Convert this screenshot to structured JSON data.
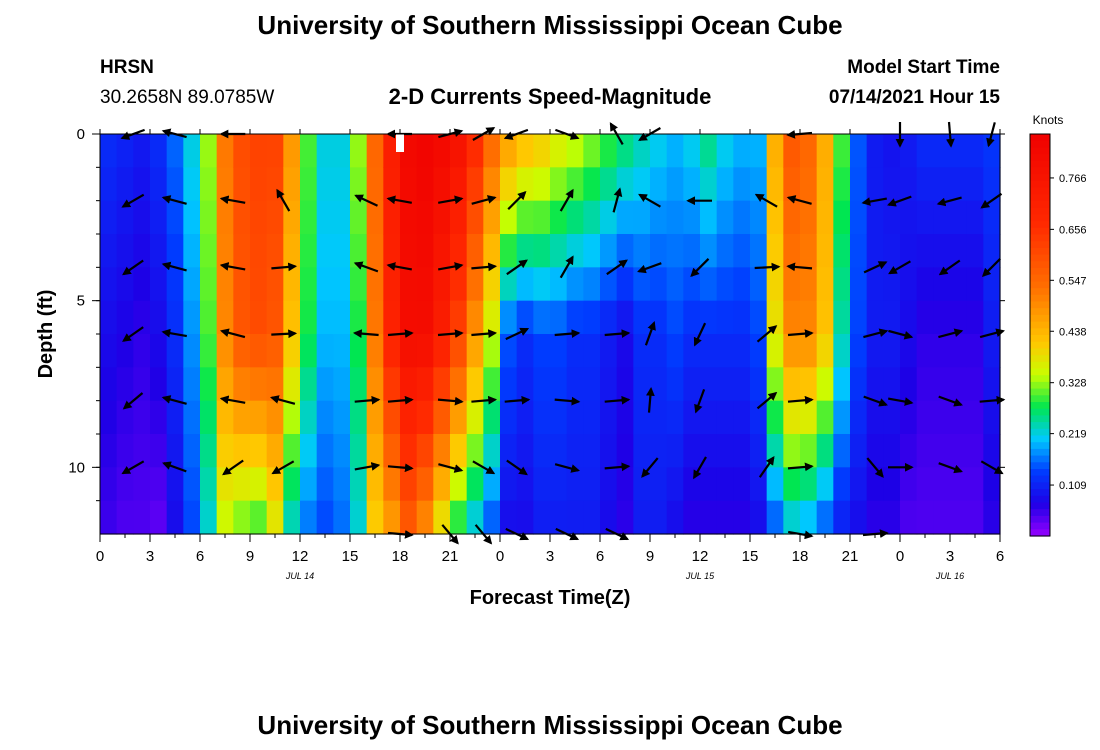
{
  "header": {
    "title": "University of Southern Mississippi Ocean Cube",
    "station": "HRSN",
    "coords": "30.2658N  89.0785W",
    "plot_title": "2-D Currents Speed-Magnitude",
    "model_label": "Model Start Time",
    "model_time": "07/14/2021 Hour 15"
  },
  "footer": {
    "title": "University of Southern Mississippi Ocean Cube"
  },
  "chart_data": {
    "type": "heatmap",
    "title": "2-D Currents Speed-Magnitude",
    "xlabel": "Forecast Time(Z)",
    "ylabel": "Depth (ft)",
    "x_tick_labels": [
      "0",
      "3",
      "6",
      "9",
      "12",
      "15",
      "18",
      "21",
      "0",
      "3",
      "6",
      "9",
      "12",
      "15",
      "18",
      "21",
      "0",
      "3",
      "6"
    ],
    "date_labels": [
      {
        "label": "JUL 14",
        "hour": 12
      },
      {
        "label": "JUL 15",
        "hour": 36
      },
      {
        "label": "JUL 16",
        "hour": 51
      }
    ],
    "xlim_hours": [
      0,
      54
    ],
    "y_tick_labels": [
      "0",
      "5",
      "10"
    ],
    "ylim_ft": [
      0,
      12
    ],
    "y_direction": "down",
    "colorbar": {
      "unit": "Knots",
      "tick_labels": [
        "0.766",
        "0.656",
        "0.547",
        "0.438",
        "0.328",
        "0.219",
        "0.109"
      ],
      "tick_values": [
        0.766,
        0.656,
        0.547,
        0.438,
        0.328,
        0.219,
        0.109
      ],
      "range": [
        0,
        0.86
      ]
    },
    "speed_profile": {
      "hours": [
        0,
        1,
        2,
        3,
        4,
        5,
        6,
        7,
        8,
        9,
        10,
        11,
        12,
        13,
        14,
        15,
        16,
        17,
        18,
        19,
        20,
        21,
        22,
        23,
        24,
        25,
        26,
        27,
        28,
        29,
        30,
        31,
        32,
        33,
        34,
        35,
        36,
        37,
        38,
        39,
        40,
        41,
        42,
        43,
        44,
        45,
        46,
        47,
        48,
        49,
        50,
        51,
        52,
        53,
        54
      ],
      "surface": [
        0.12,
        0.11,
        0.1,
        0.12,
        0.16,
        0.22,
        0.33,
        0.52,
        0.6,
        0.62,
        0.62,
        0.48,
        0.3,
        0.22,
        0.22,
        0.33,
        0.55,
        0.72,
        0.82,
        0.84,
        0.82,
        0.78,
        0.68,
        0.55,
        0.48,
        0.44,
        0.42,
        0.38,
        0.36,
        0.33,
        0.3,
        0.27,
        0.24,
        0.22,
        0.2,
        0.22,
        0.26,
        0.22,
        0.2,
        0.2,
        0.45,
        0.58,
        0.55,
        0.45,
        0.3,
        0.15,
        0.1,
        0.09,
        0.1,
        0.12,
        0.12,
        0.12,
        0.12,
        0.13,
        0.14
      ],
      "mid": [
        0.08,
        0.07,
        0.06,
        0.08,
        0.12,
        0.18,
        0.3,
        0.5,
        0.58,
        0.6,
        0.58,
        0.42,
        0.28,
        0.2,
        0.2,
        0.28,
        0.52,
        0.7,
        0.8,
        0.8,
        0.72,
        0.62,
        0.48,
        0.35,
        0.15,
        0.12,
        0.14,
        0.14,
        0.12,
        0.12,
        0.1,
        0.08,
        0.12,
        0.12,
        0.14,
        0.12,
        0.12,
        0.12,
        0.12,
        0.14,
        0.38,
        0.5,
        0.5,
        0.42,
        0.24,
        0.14,
        0.1,
        0.1,
        0.08,
        0.06,
        0.06,
        0.06,
        0.06,
        0.1,
        0.14
      ],
      "bottom": [
        0.05,
        0.04,
        0.04,
        0.03,
        0.08,
        0.14,
        0.22,
        0.34,
        0.3,
        0.28,
        0.36,
        0.22,
        0.16,
        0.14,
        0.16,
        0.22,
        0.4,
        0.46,
        0.56,
        0.48,
        0.36,
        0.26,
        0.2,
        0.14,
        0.08,
        0.08,
        0.1,
        0.1,
        0.1,
        0.1,
        0.08,
        0.06,
        0.1,
        0.1,
        0.08,
        0.06,
        0.06,
        0.06,
        0.06,
        0.08,
        0.14,
        0.2,
        0.18,
        0.14,
        0.1,
        0.08,
        0.06,
        0.06,
        0.04,
        0.04,
        0.04,
        0.04,
        0.04,
        0.06,
        0.1
      ]
    },
    "vector_depths_ft": [
      0,
      2,
      4,
      6,
      8,
      10,
      12
    ],
    "vector_hours": [
      2,
      4.5,
      8,
      11,
      16,
      18,
      21,
      23,
      25,
      28,
      31,
      33,
      36,
      40,
      42,
      46.5,
      48,
      51,
      53.5
    ],
    "vector_directions_deg": [
      [
        200,
        165,
        180,
        null,
        null,
        180,
        15,
        30,
        200,
        340,
        120,
        210,
        null,
        null,
        185,
        null,
        270,
        275,
        255
      ],
      [
        210,
        165,
        170,
        120,
        155,
        170,
        10,
        15,
        45,
        60,
        75,
        150,
        180,
        150,
        165,
        190,
        200,
        195,
        215
      ],
      [
        215,
        165,
        170,
        5,
        160,
        170,
        10,
        5,
        35,
        60,
        35,
        200,
        225,
        3,
        175,
        25,
        210,
        215,
        225
      ],
      [
        215,
        170,
        165,
        3,
        175,
        5,
        5,
        5,
        25,
        5,
        5,
        70,
        245,
        40,
        5,
        15,
        345,
        15,
        15
      ],
      [
        220,
        165,
        170,
        165,
        5,
        5,
        355,
        5,
        5,
        355,
        5,
        85,
        250,
        40,
        5,
        340,
        350,
        340,
        5
      ],
      [
        210,
        160,
        215,
        210,
        10,
        355,
        345,
        330,
        325,
        345,
        5,
        230,
        240,
        55,
        5,
        310,
        0,
        340,
        330
      ],
      [
        null,
        null,
        null,
        null,
        null,
        355,
        310,
        310,
        335,
        335,
        335,
        null,
        null,
        null,
        350,
        5,
        null,
        null,
        null
      ]
    ]
  }
}
